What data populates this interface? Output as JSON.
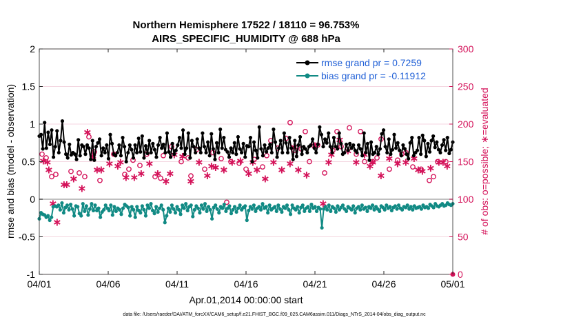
{
  "chart_data": {
    "type": "line",
    "title": "Northern Hemisphere 17522 / 18110 = 96.753%",
    "subtitle": "AIRS_SPECIFIC_HUMIDITY @ 688 hPa",
    "xlabel": "Apr.01,2014 00:00:00 start",
    "ylabel": "rmse and bias (model - observation)",
    "y2label": "# of obs: o=possible; ∗=evaluated",
    "footnote": "data file: /Users/raeder/DAI/ATM_forcXX/CAM6_setup/f.e21.FHIST_BGC.f09_025.CAM6assim.011/Diags_NTrS_2014-04/obs_diag_output.nc",
    "xlim": [
      0,
      30
    ],
    "ylim": [
      -1,
      2
    ],
    "y2lim": [
      0,
      300
    ],
    "x_ticks": [
      0,
      5,
      10,
      15,
      20,
      25,
      30
    ],
    "x_tick_labels": [
      "04/01",
      "04/06",
      "04/11",
      "04/16",
      "04/21",
      "04/26",
      "05/01"
    ],
    "y_ticks": [
      -1,
      -0.5,
      0,
      0.5,
      1,
      1.5,
      2
    ],
    "y_tick_labels": [
      "-1",
      "-0.5",
      "0",
      "0.5",
      "1",
      "1.5",
      "2"
    ],
    "y2_ticks": [
      0,
      50,
      100,
      150,
      200,
      250,
      300
    ],
    "y2_tick_labels": [
      "0",
      "50",
      "100",
      "150",
      "200",
      "250",
      "300"
    ],
    "legend_position": "top-right",
    "series": [
      {
        "name": "rmse grand pr = 0.7259",
        "color": "#000000",
        "marker": "filled-circle",
        "axis": "left",
        "values": [
          0.84,
          0.86,
          0.67,
          1.02,
          0.68,
          0.89,
          0.73,
          0.92,
          0.56,
          0.7,
          0.91,
          0.62,
          0.78,
          1.04,
          0.76,
          0.6,
          0.55,
          0.73,
          0.59,
          0.62,
          0.6,
          0.53,
          0.79,
          0.58,
          0.72,
          0.7,
          0.6,
          0.72,
          0.68,
          0.53,
          0.78,
          0.52,
          0.7,
          0.75,
          0.8,
          0.58,
          0.68,
          0.62,
          0.72,
          0.54,
          0.86,
          0.74,
          0.6,
          0.58,
          0.62,
          0.72,
          0.58,
          0.82,
          0.7,
          0.5,
          0.62,
          0.72,
          0.66,
          0.55,
          0.72,
          0.62,
          0.81,
          0.63,
          0.84,
          0.55,
          0.71,
          0.61,
          0.78,
          0.62,
          0.74,
          0.66,
          0.56,
          0.72,
          0.82,
          0.68,
          0.73,
          0.62,
          0.88,
          0.63,
          0.56,
          0.74,
          0.6,
          0.65,
          0.72,
          0.82,
          0.68,
          0.92,
          0.6,
          0.68,
          0.88,
          0.55,
          0.78,
          0.7,
          0.62,
          0.8,
          0.68,
          0.62,
          0.88,
          0.7,
          0.62,
          0.76,
          0.58,
          0.87,
          0.67,
          0.53,
          0.75,
          0.62,
          0.93,
          0.68,
          0.82,
          0.66,
          0.63,
          0.56,
          0.68,
          0.62,
          0.75,
          0.6,
          0.83,
          0.67,
          0.62,
          0.74,
          0.56,
          0.71,
          0.7,
          0.82,
          0.5,
          0.76,
          0.65,
          0.55,
          0.96,
          0.67,
          0.58,
          0.72,
          0.63,
          0.68,
          0.73,
          0.62,
          0.93,
          0.76,
          0.56,
          0.68,
          0.78,
          0.62,
          0.88,
          0.75,
          0.62,
          0.82,
          0.68,
          0.53,
          0.78,
          0.57,
          0.72,
          0.83,
          0.6,
          0.7,
          0.67,
          0.62,
          0.7,
          0.72,
          0.8,
          0.68,
          0.62,
          0.73,
          0.96,
          0.86,
          0.7,
          0.8,
          0.75,
          0.88,
          0.7,
          0.62,
          0.82,
          0.7,
          0.67,
          0.88,
          0.74,
          0.6,
          0.62,
          0.73,
          0.65,
          0.74,
          0.68,
          0.72,
          0.65,
          0.62,
          0.72,
          0.67,
          0.58,
          0.88,
          0.62,
          0.74,
          0.52,
          0.76,
          0.6,
          0.62,
          0.7,
          0.6,
          0.67,
          0.87,
          0.92,
          0.7,
          0.62,
          0.8,
          0.6,
          0.66,
          0.86,
          0.68,
          0.75,
          0.65,
          0.58,
          0.72,
          0.67,
          0.6,
          0.54,
          0.75,
          0.82,
          0.58,
          0.62,
          0.65,
          0.82,
          0.6,
          0.85,
          0.78,
          0.57,
          0.74,
          0.63,
          0.78,
          0.84,
          0.69,
          0.76,
          0.66,
          0.62,
          0.72,
          0.79,
          0.65,
          0.82,
          0.61,
          0.66,
          0.76
        ]
      },
      {
        "name": "bias grand pr = -0.11912",
        "color": "#118a84",
        "marker": "filled-circle",
        "axis": "left",
        "values": [
          -0.26,
          -0.18,
          -0.2,
          -0.21,
          -0.24,
          -0.22,
          -0.28,
          -0.24,
          -0.1,
          -0.09,
          -0.1,
          -0.08,
          -0.14,
          -0.05,
          -0.18,
          -0.11,
          -0.08,
          -0.14,
          -0.07,
          -0.13,
          -0.22,
          -0.09,
          -0.1,
          -0.19,
          -0.22,
          -0.06,
          -0.16,
          -0.09,
          -0.21,
          -0.13,
          -0.06,
          -0.15,
          -0.08,
          -0.15,
          -0.12,
          -0.24,
          -0.17,
          -0.14,
          -0.08,
          -0.12,
          -0.15,
          -0.08,
          -0.21,
          -0.1,
          -0.16,
          -0.12,
          -0.14,
          -0.2,
          -0.12,
          -0.07,
          -0.09,
          -0.11,
          -0.22,
          -0.1,
          -0.14,
          -0.24,
          -0.1,
          -0.15,
          -0.18,
          -0.09,
          -0.14,
          -0.22,
          -0.08,
          -0.12,
          -0.06,
          -0.15,
          -0.19,
          -0.1,
          -0.17,
          -0.12,
          -0.08,
          -0.14,
          -0.31,
          -0.22,
          -0.12,
          -0.17,
          -0.08,
          -0.13,
          -0.18,
          -0.1,
          -0.14,
          -0.2,
          -0.08,
          -0.12,
          -0.06,
          -0.15,
          -0.1,
          -0.08,
          -0.23,
          -0.14,
          -0.09,
          -0.12,
          -0.18,
          -0.08,
          -0.13,
          -0.06,
          -0.16,
          -0.1,
          -0.14,
          -0.26,
          -0.11,
          -0.08,
          -0.13,
          -0.18,
          -0.1,
          -0.12,
          -0.07,
          -0.16,
          -0.12,
          -0.09,
          -0.19,
          -0.14,
          -0.1,
          -0.17,
          -0.12,
          -0.08,
          -0.14,
          -0.11,
          -0.09,
          -0.28,
          -0.15,
          -0.1,
          -0.13,
          -0.08,
          -0.16,
          -0.12,
          -0.1,
          -0.14,
          -0.06,
          -0.12,
          -0.1,
          -0.18,
          -0.08,
          -0.14,
          -0.12,
          -0.1,
          -0.16,
          -0.08,
          -0.13,
          -0.17,
          -0.1,
          -0.12,
          -0.08,
          -0.14,
          -0.2,
          -0.08,
          -0.12,
          -0.14,
          -0.1,
          -0.18,
          -0.11,
          -0.08,
          -0.16,
          -0.12,
          -0.1,
          -0.16,
          -0.07,
          -0.12,
          -0.1,
          -0.16,
          -0.11,
          -0.13,
          -0.38,
          -0.13,
          -0.1,
          -0.14,
          -0.08,
          -0.16,
          -0.1,
          -0.12,
          -0.17,
          -0.09,
          -0.14,
          -0.11,
          -0.08,
          -0.13,
          -0.16,
          -0.1,
          -0.12,
          -0.14,
          -0.09,
          -0.18,
          -0.12,
          -0.1,
          -0.14,
          -0.08,
          -0.13,
          -0.11,
          -0.16,
          -0.1,
          -0.12,
          -0.08,
          -0.14,
          -0.1,
          -0.13,
          -0.16,
          -0.09,
          -0.11,
          -0.14,
          -0.08,
          -0.12,
          -0.1,
          -0.15,
          -0.11,
          -0.09,
          -0.13,
          -0.08,
          -0.12,
          -0.14,
          -0.1,
          -0.11,
          -0.08,
          -0.13,
          -0.1,
          -0.14,
          -0.09,
          -0.12,
          -0.11,
          -0.1,
          -0.13,
          -0.08,
          -0.11,
          -0.1,
          -0.12,
          -0.07,
          -0.09,
          -0.11,
          -0.06,
          -0.09,
          -0.1,
          -0.08,
          -0.06,
          -0.09,
          -0.08,
          -0.05,
          -0.07,
          -0.08,
          -0.06
        ]
      },
      {
        "name": "possible",
        "color": "#d4135a",
        "marker": "circle",
        "axis": "right",
        "x": [
          0.2,
          0.5,
          1.2,
          2.3,
          3.6,
          4.0,
          4.4,
          5.4,
          6.2,
          6.8,
          7.3,
          7.8,
          8.4,
          9.0,
          9.6,
          10.3,
          10.8,
          11.4,
          12.0,
          12.6,
          13.2,
          13.9,
          14.5,
          15.0,
          15.6,
          16.2,
          16.8,
          17.3,
          17.9,
          18.5,
          19.0,
          19.6,
          20.2,
          20.7,
          21.3,
          21.9,
          22.5,
          23.0,
          23.6,
          24.2,
          24.8,
          25.4,
          26.0,
          26.6,
          27.1,
          27.7,
          28.3,
          28.9,
          29.5,
          0.9,
          2.9,
          3.3,
          6.5,
          8.8,
          11.0,
          13.6,
          16.5,
          18.2,
          19.3,
          21.6,
          23.3,
          24.5,
          26.3,
          28.6
        ],
        "values": [
          160,
          155,
          133,
          137,
          183,
          163,
          125,
          160,
          133,
          152,
          145,
          160,
          130,
          158,
          170,
          150,
          155,
          166,
          140,
          162,
          154,
          150,
          148,
          140,
          153,
          143,
          178,
          168,
          181,
          165,
          167,
          150,
          172,
          135,
          165,
          170,
          195,
          160,
          150,
          150,
          180,
          140,
          152,
          162,
          143,
          140,
          125,
          150,
          150,
          130,
          135,
          130,
          140,
          128,
          131,
          96,
          158,
          202,
          190,
          190,
          190,
          155,
          160,
          130
        ]
      },
      {
        "name": "evaluated",
        "color": "#d4135a",
        "marker": "asterisk",
        "axis": "right",
        "x": [
          0.3,
          0.7,
          1.3,
          1.8,
          2.5,
          3.1,
          3.9,
          4.5,
          5.1,
          5.7,
          6.3,
          6.9,
          7.4,
          8.0,
          8.6,
          9.2,
          9.8,
          10.4,
          11.0,
          11.6,
          12.2,
          12.8,
          13.4,
          14.0,
          14.6,
          15.2,
          15.8,
          16.4,
          17.0,
          17.6,
          18.2,
          18.8,
          19.4,
          20.0,
          20.6,
          21.2,
          21.8,
          22.4,
          23.0,
          23.6,
          24.2,
          24.8,
          25.4,
          26.0,
          26.6,
          27.2,
          27.8,
          28.4,
          29.0,
          29.6,
          0.6,
          2.0,
          4.2,
          5.9,
          9.5,
          12.5,
          15.5,
          18.5,
          21.0,
          24.0,
          27.5,
          29.3,
          1.0,
          3.5
        ],
        "values": [
          152,
          140,
          70,
          120,
          128,
          115,
          158,
          140,
          148,
          145,
          130,
          130,
          135,
          148,
          135,
          125,
          160,
          158,
          125,
          150,
          132,
          143,
          140,
          150,
          152,
          135,
          140,
          128,
          150,
          140,
          148,
          140,
          133,
          172,
          95,
          160,
          180,
          165,
          150,
          160,
          150,
          132,
          155,
          148,
          150,
          155,
          138,
          142,
          150,
          145,
          150,
          120,
          140,
          150,
          135,
          145,
          150,
          170,
          150,
          145,
          140,
          150,
          95,
          190
        ]
      }
    ]
  }
}
